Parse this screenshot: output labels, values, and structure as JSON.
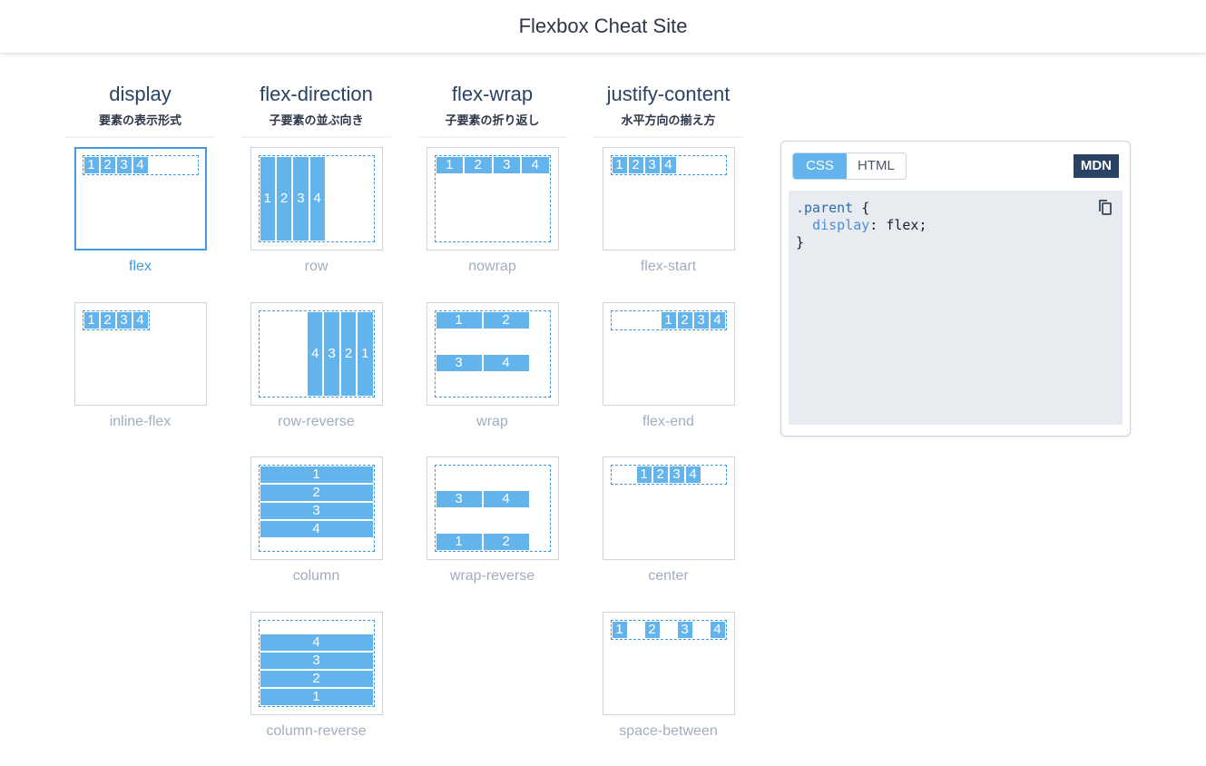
{
  "header": {
    "title": "Flexbox Cheat Site"
  },
  "items": [
    "1",
    "2",
    "3",
    "4"
  ],
  "columns": [
    {
      "property": "display",
      "subtitle": "要素の表示形式",
      "values": [
        {
          "label": "flex",
          "selected": true
        },
        {
          "label": "inline-flex",
          "selected": false
        }
      ]
    },
    {
      "property": "flex-direction",
      "subtitle": "子要素の並ぶ向き",
      "values": [
        {
          "label": "row",
          "selected": false
        },
        {
          "label": "row-reverse",
          "selected": false
        },
        {
          "label": "column",
          "selected": false
        },
        {
          "label": "column-reverse",
          "selected": false
        }
      ]
    },
    {
      "property": "flex-wrap",
      "subtitle": "子要素の折り返し",
      "values": [
        {
          "label": "nowrap",
          "selected": false
        },
        {
          "label": "wrap",
          "selected": false
        },
        {
          "label": "wrap-reverse",
          "selected": false
        }
      ]
    },
    {
      "property": "justify-content",
      "subtitle": "水平方向の揃え方",
      "values": [
        {
          "label": "flex-start",
          "selected": false
        },
        {
          "label": "flex-end",
          "selected": false
        },
        {
          "label": "center",
          "selected": false
        },
        {
          "label": "space-between",
          "selected": false
        }
      ]
    }
  ],
  "panel": {
    "tabs": [
      {
        "label": "CSS",
        "active": true
      },
      {
        "label": "HTML",
        "active": false
      }
    ],
    "mdn_label": "MDN",
    "code": {
      "selector": ".parent",
      "open": " {",
      "property": "display",
      "value": ": flex;",
      "close": "}"
    }
  },
  "colors": {
    "accent": "#63b3ed",
    "selected": "#4299e1",
    "dark": "#2a4365"
  }
}
